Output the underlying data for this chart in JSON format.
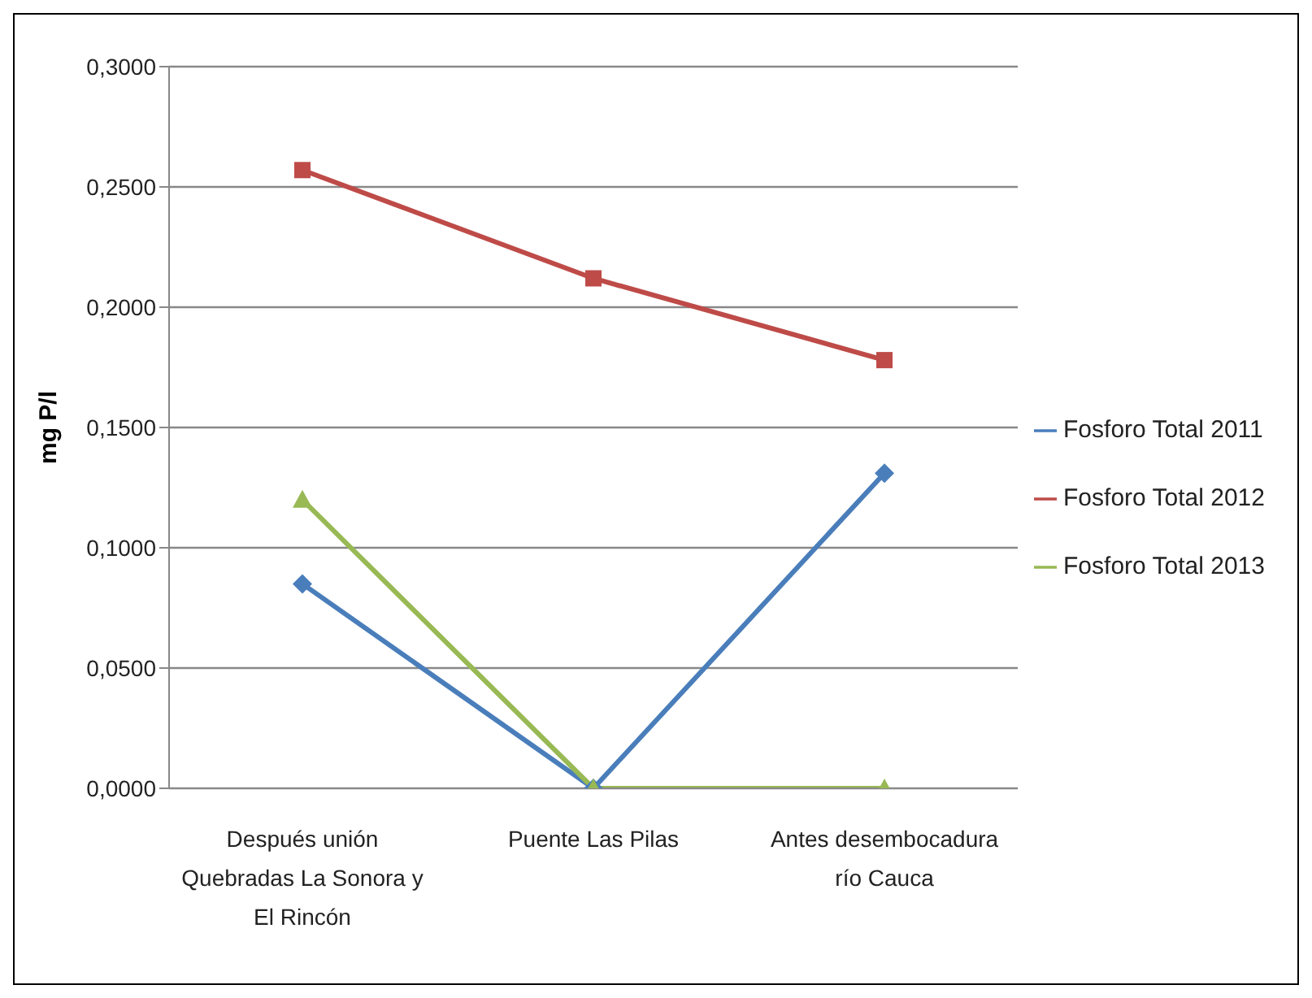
{
  "chart_data": {
    "type": "line",
    "ylabel": "mg P/l",
    "categories": [
      "Después unión Quebradas La Sonora y El Rincón",
      "Puente Las Pilas",
      "Antes desembocadura río Cauca"
    ],
    "series": [
      {
        "name": "Fosforo Total 2011",
        "color": "#4a7ebb",
        "marker": "diamond",
        "values": [
          0.085,
          0,
          0.131
        ]
      },
      {
        "name": "Fosforo Total 2012",
        "color": "#be4b48",
        "marker": "square",
        "values": [
          0.257,
          0.212,
          0.178
        ]
      },
      {
        "name": "Fosforo Total 2013",
        "color": "#98b954",
        "marker": "triangle",
        "values": [
          0.12,
          0,
          0
        ]
      }
    ],
    "ylim": [
      0,
      0.3
    ],
    "yticks": [
      {
        "value": 0,
        "label": "0,0000"
      },
      {
        "value": 0.05,
        "label": "0,0500"
      },
      {
        "value": 0.1,
        "label": "0,1000"
      },
      {
        "value": 0.15,
        "label": "0,1500"
      },
      {
        "value": 0.2,
        "label": "0,2000"
      },
      {
        "value": 0.25,
        "label": "0,2500"
      },
      {
        "value": 0.3,
        "label": "0,3000"
      }
    ],
    "grid": "y",
    "legend": "right",
    "line_style": "solid"
  }
}
